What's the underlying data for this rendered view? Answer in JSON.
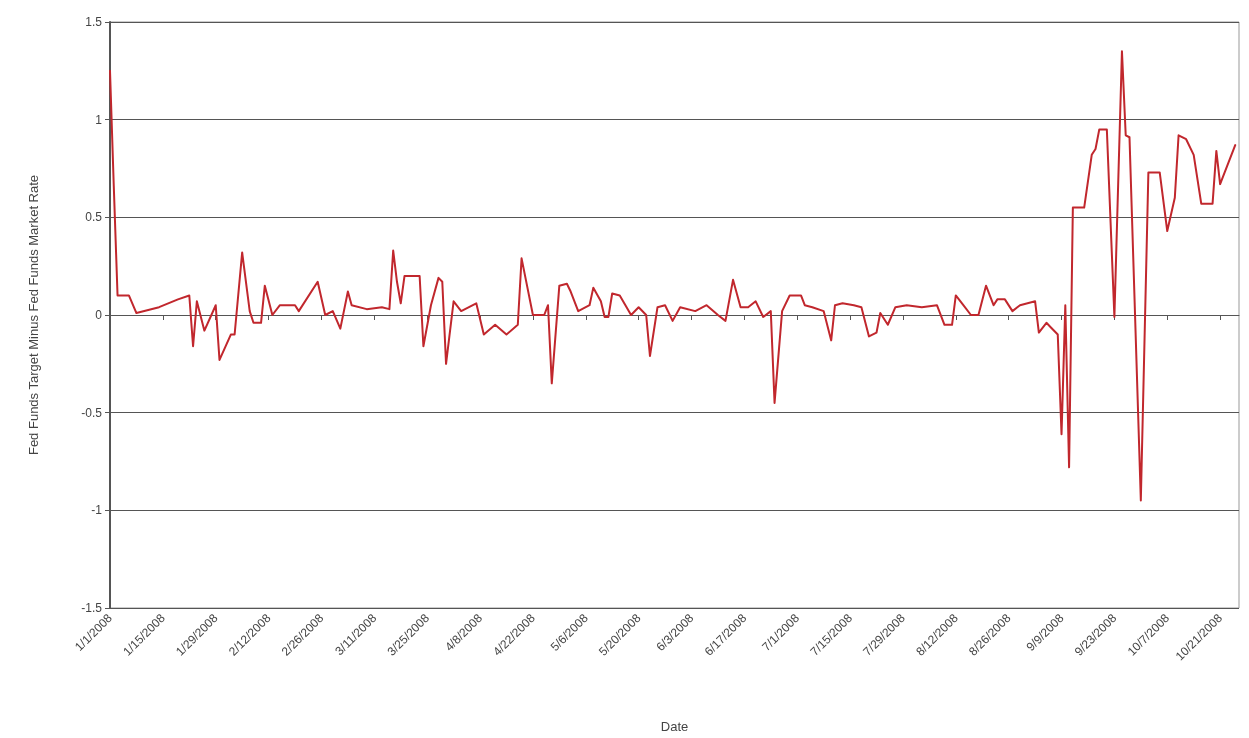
{
  "chart_data": {
    "type": "line",
    "xlabel": "Date",
    "ylabel": "Fed Funds Target Minus Fed Funds Market Rate",
    "x": [
      "2008-01-01",
      "2008-01-02",
      "2008-01-03",
      "2008-01-06",
      "2008-01-08",
      "2008-01-14",
      "2008-01-19",
      "2008-01-22",
      "2008-01-23",
      "2008-01-24",
      "2008-01-26",
      "2008-01-29",
      "2008-01-30",
      "2008-02-02",
      "2008-02-03",
      "2008-02-05",
      "2008-02-07",
      "2008-02-08",
      "2008-02-10",
      "2008-02-11",
      "2008-02-13",
      "2008-02-15",
      "2008-02-19",
      "2008-02-20",
      "2008-02-25",
      "2008-02-27",
      "2008-02-29",
      "2008-03-02",
      "2008-03-04",
      "2008-03-05",
      "2008-03-09",
      "2008-03-13",
      "2008-03-15",
      "2008-03-16",
      "2008-03-17",
      "2008-03-18",
      "2008-03-19",
      "2008-03-23",
      "2008-03-24",
      "2008-03-26",
      "2008-03-28",
      "2008-03-29",
      "2008-03-30",
      "2008-04-01",
      "2008-04-03",
      "2008-04-07",
      "2008-04-09",
      "2008-04-12",
      "2008-04-15",
      "2008-04-18",
      "2008-04-19",
      "2008-04-22",
      "2008-04-25",
      "2008-04-26",
      "2008-04-27",
      "2008-04-29",
      "2008-05-01",
      "2008-05-02",
      "2008-05-04",
      "2008-05-07",
      "2008-05-08",
      "2008-05-10",
      "2008-05-11",
      "2008-05-12",
      "2008-05-13",
      "2008-05-15",
      "2008-05-18",
      "2008-05-20",
      "2008-05-22",
      "2008-05-23",
      "2008-05-25",
      "2008-05-27",
      "2008-05-29",
      "2008-05-31",
      "2008-06-04",
      "2008-06-07",
      "2008-06-10",
      "2008-06-12",
      "2008-06-14",
      "2008-06-16",
      "2008-06-18",
      "2008-06-20",
      "2008-06-22",
      "2008-06-24",
      "2008-06-25",
      "2008-06-27",
      "2008-06-29",
      "2008-07-02",
      "2008-07-03",
      "2008-07-05",
      "2008-07-08",
      "2008-07-10",
      "2008-07-11",
      "2008-07-13",
      "2008-07-16",
      "2008-07-18",
      "2008-07-20",
      "2008-07-22",
      "2008-07-23",
      "2008-07-25",
      "2008-07-27",
      "2008-07-30",
      "2008-08-03",
      "2008-08-07",
      "2008-08-09",
      "2008-08-11",
      "2008-08-12",
      "2008-08-14",
      "2008-08-16",
      "2008-08-18",
      "2008-08-20",
      "2008-08-22",
      "2008-08-23",
      "2008-08-25",
      "2008-08-27",
      "2008-08-29",
      "2008-09-02",
      "2008-09-03",
      "2008-09-05",
      "2008-09-06",
      "2008-09-08",
      "2008-09-09",
      "2008-09-10",
      "2008-09-11",
      "2008-09-12",
      "2008-09-15",
      "2008-09-17",
      "2008-09-18",
      "2008-09-19",
      "2008-09-21",
      "2008-09-23",
      "2008-09-25",
      "2008-09-26",
      "2008-09-27",
      "2008-09-30",
      "2008-10-02",
      "2008-10-05",
      "2008-10-07",
      "2008-10-09",
      "2008-10-10",
      "2008-10-12",
      "2008-10-14",
      "2008-10-16",
      "2008-10-19",
      "2008-10-20",
      "2008-10-21",
      "2008-10-25"
    ],
    "series": [
      {
        "color": "#c1272d",
        "values": [
          1.25,
          0.66,
          0.1,
          0.1,
          0.01,
          0.04,
          0.08,
          0.1,
          -0.16,
          0.07,
          -0.08,
          0.05,
          -0.23,
          -0.1,
          -0.1,
          0.32,
          0.02,
          -0.04,
          -0.04,
          0.15,
          0.0,
          0.05,
          0.05,
          0.02,
          0.17,
          0.0,
          0.02,
          -0.07,
          0.12,
          0.05,
          0.03,
          0.04,
          0.03,
          0.33,
          0.17,
          0.06,
          0.2,
          0.2,
          -0.16,
          0.05,
          0.19,
          0.17,
          -0.25,
          0.07,
          0.02,
          0.06,
          -0.1,
          -0.05,
          -0.1,
          -0.05,
          0.29,
          0.0,
          0.0,
          0.05,
          -0.35,
          0.15,
          0.16,
          0.12,
          0.02,
          0.05,
          0.14,
          0.07,
          -0.01,
          -0.01,
          0.11,
          0.1,
          0.0,
          0.04,
          0.0,
          -0.21,
          0.04,
          0.05,
          -0.03,
          0.04,
          0.02,
          0.05,
          0.0,
          -0.03,
          0.18,
          0.04,
          0.04,
          0.07,
          -0.01,
          0.02,
          -0.45,
          0.02,
          0.1,
          0.1,
          0.05,
          0.04,
          0.02,
          -0.13,
          0.05,
          0.06,
          0.05,
          0.04,
          -0.11,
          -0.09,
          0.01,
          -0.05,
          0.04,
          0.05,
          0.04,
          0.05,
          -0.05,
          -0.05,
          0.1,
          0.05,
          0.0,
          0.0,
          0.15,
          0.05,
          0.08,
          0.08,
          0.02,
          0.05,
          0.07,
          -0.09,
          -0.04,
          -0.06,
          -0.1,
          -0.61,
          0.05,
          -0.78,
          0.55,
          0.55,
          0.82,
          0.85,
          0.95,
          0.95,
          -0.01,
          1.35,
          0.92,
          0.91,
          -0.95,
          0.73,
          0.73,
          0.43,
          0.6,
          0.92,
          0.9,
          0.82,
          0.57,
          0.57,
          0.84,
          0.67,
          0.87
        ]
      }
    ],
    "xlim": [
      "2008-01-01",
      "2008-10-26"
    ],
    "xticks": [
      {
        "value": "2008-01-01",
        "label": "1/1/2008"
      },
      {
        "value": "2008-01-15",
        "label": "1/15/2008"
      },
      {
        "value": "2008-01-29",
        "label": "1/29/2008"
      },
      {
        "value": "2008-02-12",
        "label": "2/12/2008"
      },
      {
        "value": "2008-02-26",
        "label": "2/26/2008"
      },
      {
        "value": "2008-03-11",
        "label": "3/11/2008"
      },
      {
        "value": "2008-03-25",
        "label": "3/25/2008"
      },
      {
        "value": "2008-04-08",
        "label": "4/8/2008"
      },
      {
        "value": "2008-04-22",
        "label": "4/22/2008"
      },
      {
        "value": "2008-05-06",
        "label": "5/6/2008"
      },
      {
        "value": "2008-05-20",
        "label": "5/20/2008"
      },
      {
        "value": "2008-06-03",
        "label": "6/3/2008"
      },
      {
        "value": "2008-06-17",
        "label": "6/17/2008"
      },
      {
        "value": "2008-07-01",
        "label": "7/1/2008"
      },
      {
        "value": "2008-07-15",
        "label": "7/15/2008"
      },
      {
        "value": "2008-07-29",
        "label": "7/29/2008"
      },
      {
        "value": "2008-08-12",
        "label": "8/12/2008"
      },
      {
        "value": "2008-08-26",
        "label": "8/26/2008"
      },
      {
        "value": "2008-09-09",
        "label": "9/9/2008"
      },
      {
        "value": "2008-09-23",
        "label": "9/23/2008"
      },
      {
        "value": "2008-10-07",
        "label": "10/7/2008"
      },
      {
        "value": "2008-10-21",
        "label": "10/21/2008"
      }
    ],
    "ylim": [
      -1.5,
      1.5
    ],
    "yticks": [
      -1.5,
      -1,
      -0.5,
      0,
      0.5,
      1,
      1.5
    ],
    "grid": "y",
    "marker": "none",
    "line_style": "solid"
  }
}
